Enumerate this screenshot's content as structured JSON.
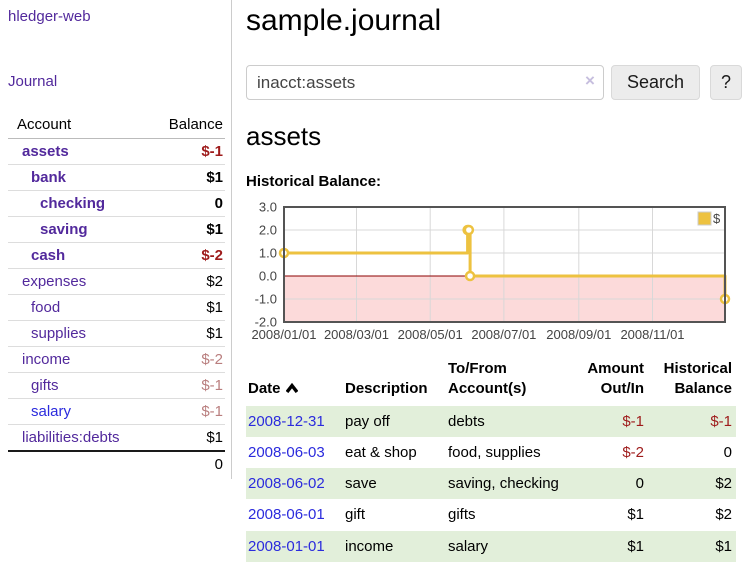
{
  "sidebar": {
    "brand": "hledger-web",
    "nav_journal": "Journal",
    "accounts_table": {
      "headers": [
        "Account",
        "Balance"
      ],
      "rows": [
        {
          "account": "assets",
          "balance": "$-1",
          "indent": 0,
          "bold": true,
          "link": "purple"
        },
        {
          "account": "bank",
          "balance": "$1",
          "indent": 1,
          "bold": true,
          "link": "purple"
        },
        {
          "account": "checking",
          "balance": "0",
          "indent": 2,
          "bold": true,
          "link": "purple"
        },
        {
          "account": "saving",
          "balance": "$1",
          "indent": 2,
          "bold": true,
          "link": "purple"
        },
        {
          "account": "cash",
          "balance": "$-2",
          "indent": 1,
          "bold": true,
          "link": "purple"
        },
        {
          "account": "expenses",
          "balance": "$2",
          "indent": 0,
          "bold": false,
          "link": "purple"
        },
        {
          "account": "food",
          "balance": "$1",
          "indent": 1,
          "bold": false,
          "link": "purple"
        },
        {
          "account": "supplies",
          "balance": "$1",
          "indent": 1,
          "bold": false,
          "link": "purple"
        },
        {
          "account": "income",
          "balance": "$-2",
          "indent": 0,
          "bold": false,
          "link": "purple"
        },
        {
          "account": "gifts",
          "balance": "$-1",
          "indent": 1,
          "bold": false,
          "link": "purple"
        },
        {
          "account": "salary",
          "balance": "$-1",
          "indent": 1,
          "bold": false,
          "link": "blue"
        },
        {
          "account": "liabilities:debts",
          "balance": "$1",
          "indent": 0,
          "bold": false,
          "link": "purple"
        }
      ],
      "total": "0"
    }
  },
  "header": {
    "title": "sample.journal"
  },
  "search": {
    "value": "inacct:assets",
    "clear_icon": "×",
    "button_label": "Search",
    "help_label": "?"
  },
  "account_page": {
    "title": "assets",
    "chart_label": "Historical Balance:"
  },
  "chart_data": {
    "type": "line",
    "step": true,
    "title": "Historical Balance:",
    "series": [
      {
        "name": "$",
        "color": "#edc240",
        "points": [
          [
            "2008-01-01",
            1
          ],
          [
            "2008-06-01",
            2
          ],
          [
            "2008-06-02",
            2
          ],
          [
            "2008-06-03",
            0
          ],
          [
            "2008-12-31",
            -1
          ]
        ]
      }
    ],
    "xlim": [
      "2008-01-01",
      "2008-12-31"
    ],
    "ylim": [
      -2,
      3
    ],
    "x_ticks": [
      "2008/01/01",
      "2008/03/01",
      "2008/05/01",
      "2008/07/01",
      "2008/09/01",
      "2008/11/01"
    ],
    "y_ticks": [
      3.0,
      2.0,
      1.0,
      0.0,
      -1.0,
      -2.0
    ],
    "grid": true,
    "legend_position": "top-right",
    "negative_region_color": "#fcdada",
    "zero_line_color": "#8b0000",
    "border_color": "#545454",
    "grid_color": "#d8d8d8"
  },
  "register_table": {
    "headers": {
      "date": "Date",
      "description": "Description",
      "accounts": "To/From Account(s)",
      "amount": "Amount Out/In",
      "balance": "Historical Balance"
    },
    "rows": [
      {
        "date": "2008-12-31",
        "description": "pay off",
        "accounts": "debts",
        "amount": "$-1",
        "balance": "$-1"
      },
      {
        "date": "2008-06-03",
        "description": "eat & shop",
        "accounts": "food, supplies",
        "amount": "$-2",
        "balance": "0"
      },
      {
        "date": "2008-06-02",
        "description": "save",
        "accounts": "saving, checking",
        "amount": "0",
        "balance": "$2"
      },
      {
        "date": "2008-06-01",
        "description": "gift",
        "accounts": "gifts",
        "amount": "$1",
        "balance": "$2"
      },
      {
        "date": "2008-01-01",
        "description": "income",
        "accounts": "salary",
        "amount": "$1",
        "balance": "$1"
      }
    ]
  },
  "colors": {
    "accent_purple": "#52299c",
    "link_blue": "#2b2bdd",
    "negative_strong": "#9e1b1b",
    "negative_muted": "#b97e7e",
    "stripe_green": "#e2efda",
    "series_yellow": "#edc240"
  }
}
